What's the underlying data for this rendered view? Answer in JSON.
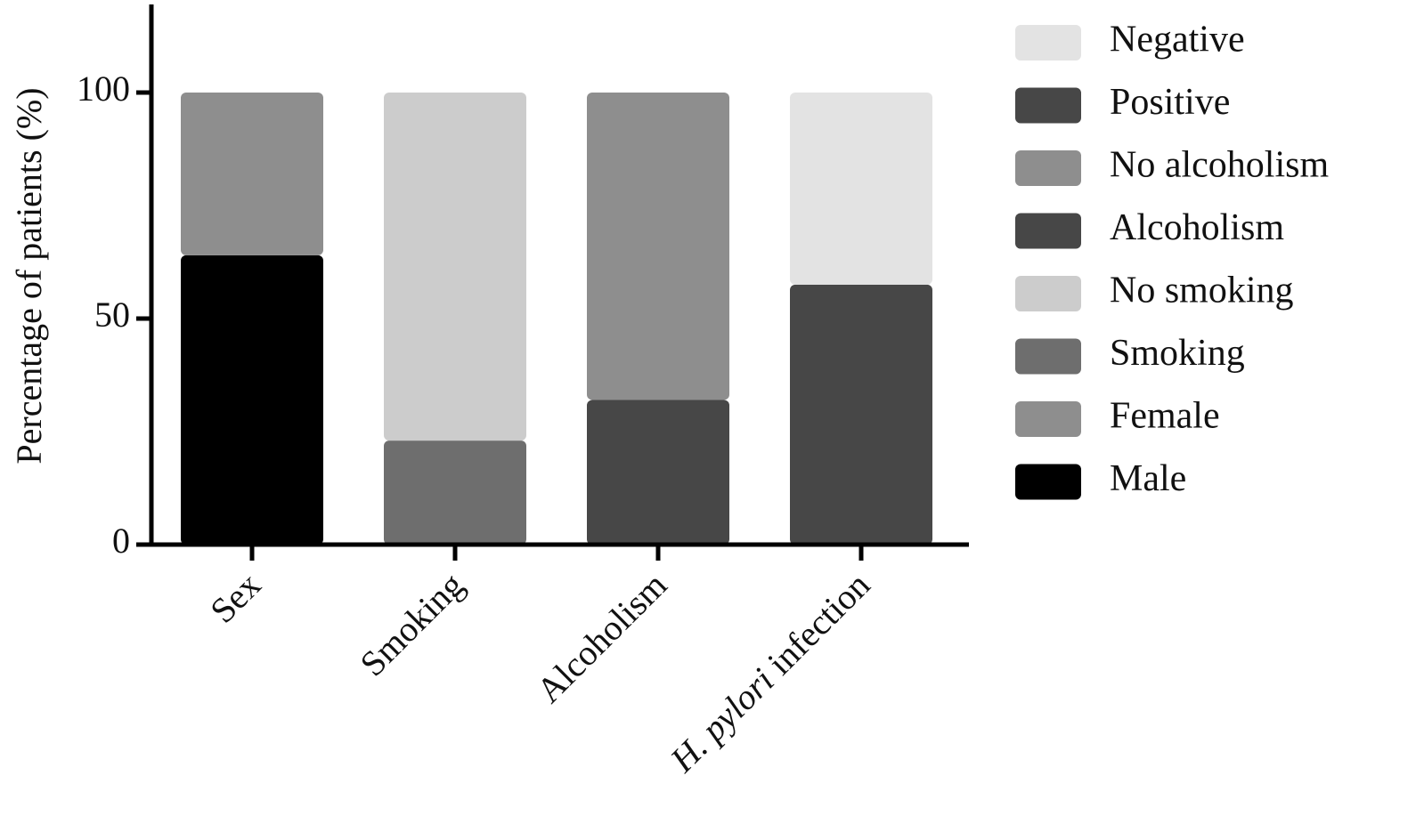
{
  "chart_data": {
    "type": "bar",
    "stacked": true,
    "title": "",
    "xlabel": "",
    "ylabel": "Percentage of patients (%)",
    "ylim": [
      0,
      120
    ],
    "yticks": [
      0,
      50,
      100
    ],
    "grid": false,
    "legend_position": "right",
    "categories": [
      {
        "name": "Sex",
        "italic_part": "",
        "rest": "Sex"
      },
      {
        "name": "Smoking",
        "italic_part": "",
        "rest": "Smoking"
      },
      {
        "name": "Alcoholism",
        "italic_part": "",
        "rest": "Alcoholism"
      },
      {
        "name": "H. pylori infection",
        "italic_part": "H. pylori",
        "rest": " infection"
      }
    ],
    "series": [
      {
        "name": "Male",
        "category": 0,
        "base": 0,
        "value": 64,
        "color": "#000000"
      },
      {
        "name": "Female",
        "category": 0,
        "base": 64,
        "value": 36,
        "color": "#8e8e8e"
      },
      {
        "name": "Smoking",
        "category": 1,
        "base": 0,
        "value": 23,
        "color": "#6e6e6e"
      },
      {
        "name": "No smoking",
        "category": 1,
        "base": 23,
        "value": 77,
        "color": "#cccccc"
      },
      {
        "name": "Alcoholism",
        "category": 2,
        "base": 0,
        "value": 32,
        "color": "#474747"
      },
      {
        "name": "No alcoholism",
        "category": 2,
        "base": 32,
        "value": 68,
        "color": "#8e8e8e"
      },
      {
        "name": "Positive",
        "category": 3,
        "base": 0,
        "value": 57.5,
        "color": "#474747"
      },
      {
        "name": "Negative",
        "category": 3,
        "base": 57.5,
        "value": 42.5,
        "color": "#e3e3e3"
      }
    ],
    "legend": [
      {
        "label": "Negative",
        "color": "#e3e3e3"
      },
      {
        "label": "Positive",
        "color": "#474747"
      },
      {
        "label": "No alcoholism",
        "color": "#8e8e8e"
      },
      {
        "label": "Alcoholism",
        "color": "#474747"
      },
      {
        "label": "No smoking",
        "color": "#cccccc"
      },
      {
        "label": "Smoking",
        "color": "#6e6e6e"
      },
      {
        "label": "Female",
        "color": "#8e8e8e"
      },
      {
        "label": "Male",
        "color": "#000000"
      }
    ]
  }
}
